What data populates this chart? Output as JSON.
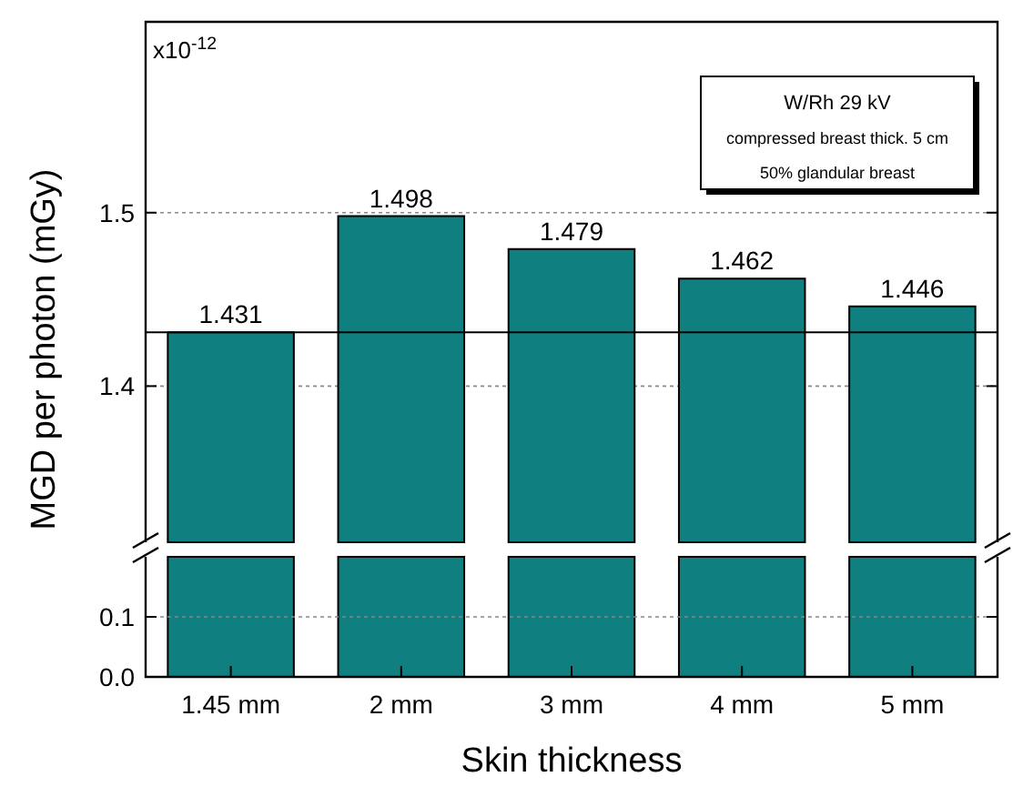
{
  "chart_data": [
    {
      "type": "bar",
      "ylabel": "MGD per photon (mGy)",
      "categories": [
        null,
        null,
        null,
        null,
        null
      ],
      "values": [
        1.431,
        1.498,
        1.479,
        1.462,
        1.446
      ],
      "color": "#0f7f7f",
      "data_labels": true,
      "ylim": [
        1.31,
        1.61
      ],
      "yticks": [
        1.4,
        1.5
      ],
      "grid": "y",
      "tick_labels": "y",
      "ref_lines": [
        {
          "axis": "y",
          "value": 1.431,
          "color": "#000000",
          "line_style": "solid"
        }
      ],
      "annotations": [
        "x10$^{-12}$",
        "W/Rh 29 kV",
        "compressed breast thick. 5 cm",
        "50% glandular breast"
      ]
    },
    {
      "type": "bar",
      "xlabel": "Skin thickness",
      "categories": [
        "1.45 mm",
        "2 mm",
        "3 mm",
        "4 mm",
        "5 mm"
      ],
      "values": [
        null,
        null,
        null,
        null,
        null
      ],
      "ylim": [
        0,
        0.2
      ],
      "yticks": [
        {
          "value": 0,
          "label": "0.0"
        },
        0.1
      ],
      "grid": "y"
    }
  ]
}
